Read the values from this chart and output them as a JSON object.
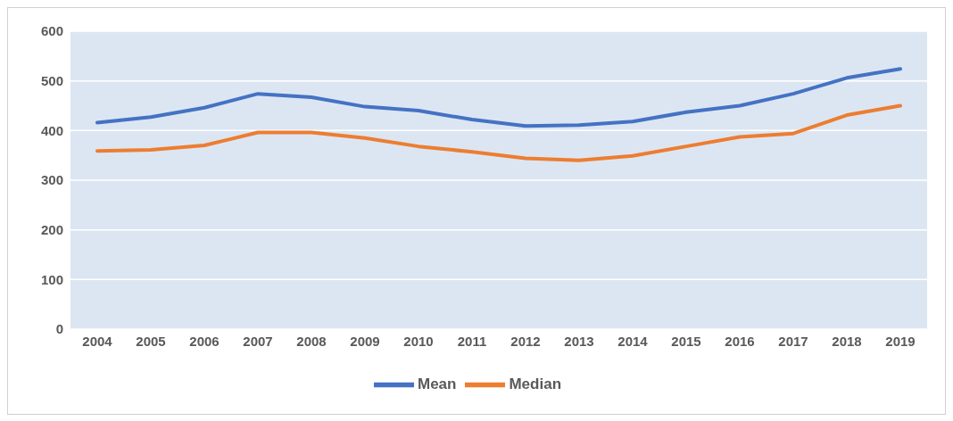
{
  "chart_data": {
    "type": "line",
    "categories": [
      "2004",
      "2005",
      "2006",
      "2007",
      "2008",
      "2009",
      "2010",
      "2011",
      "2012",
      "2013",
      "2014",
      "2015",
      "2016",
      "2017",
      "2018",
      "2019"
    ],
    "series": [
      {
        "name": "Mean",
        "color": "#4472c4",
        "values": [
          416,
          427,
          446,
          474,
          467,
          448,
          440,
          422,
          409,
          411,
          418,
          437,
          450,
          474,
          506,
          524
        ]
      },
      {
        "name": "Median",
        "color": "#ed7d31",
        "values": [
          359,
          361,
          370,
          396,
          396,
          385,
          368,
          357,
          344,
          340,
          349,
          368,
          387,
          394,
          431,
          450
        ]
      }
    ],
    "ylim": [
      0,
      600
    ],
    "yticks": [
      0,
      100,
      200,
      300,
      400,
      500,
      600
    ],
    "grid": "y",
    "legend": "bottom",
    "marker": "none",
    "line_style": "solid"
  }
}
